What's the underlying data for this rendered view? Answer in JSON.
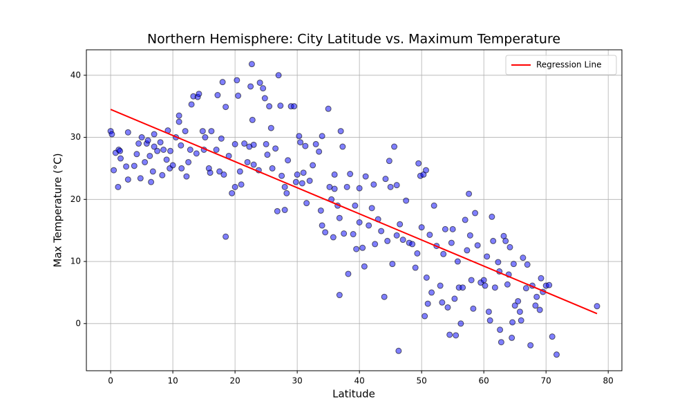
{
  "chart_data": {
    "type": "scatter",
    "title": "Northern Hemisphere: City Latitude vs. Maximum Temperature",
    "xlabel": "Latitude",
    "ylabel": "Max Temperature (°C)",
    "xlim": [
      -3.9,
      82.2
    ],
    "ylim": [
      -7.6,
      44.1
    ],
    "xticks": [
      0,
      10,
      20,
      30,
      40,
      50,
      60,
      70,
      80
    ],
    "yticks": [
      0,
      10,
      20,
      30,
      40
    ],
    "grid": true,
    "legend": "upper right",
    "color": "#0000ff",
    "edgecolor": "#000000",
    "x": [
      0,
      0.2,
      0.5,
      0.8,
      1.2,
      1.3,
      1.5,
      1.6,
      2.5,
      2.8,
      2.8,
      3.8,
      4.2,
      4.5,
      4.8,
      5,
      5.5,
      5.8,
      6,
      6.3,
      6.5,
      6.8,
      7,
      7,
      7.5,
      8,
      8.3,
      8.5,
      9,
      9.2,
      9.5,
      9.6,
      10,
      10.5,
      11,
      11,
      11.3,
      11.4,
      12,
      12.2,
      12.5,
      12.8,
      13,
      13.3,
      13.8,
      14,
      14.2,
      14.8,
      15,
      15.2,
      15.8,
      16,
      16.2,
      17,
      17.2,
      17.5,
      17.8,
      18,
      18.2,
      18.5,
      18.5,
      19,
      19.5,
      20,
      20,
      20.3,
      20.5,
      20.8,
      21,
      21.5,
      22,
      22.3,
      22.5,
      22.7,
      22.8,
      23,
      23,
      23.8,
      24,
      24.5,
      24.8,
      25,
      25.2,
      25.5,
      25.8,
      26,
      26.5,
      26.8,
      27,
      27.3,
      27.5,
      28,
      28,
      28.3,
      28.5,
      29,
      29.5,
      29.8,
      30,
      30.3,
      30.5,
      30.8,
      31,
      31.3,
      31.5,
      32,
      32.5,
      33,
      33.5,
      33.8,
      34,
      34,
      34.5,
      35,
      35.2,
      35.5,
      35.8,
      36,
      36,
      36.5,
      36.8,
      36.8,
      37,
      37.3,
      37.5,
      38,
      38.2,
      38.5,
      39,
      39.3,
      39.5,
      40,
      40,
      40.5,
      40.8,
      41,
      41.5,
      42,
      42.3,
      42.5,
      43,
      43.5,
      44,
      44.2,
      44.5,
      44.8,
      45,
      45.3,
      45.6,
      46,
      46,
      46.3,
      46.5,
      47,
      47.5,
      48,
      48.5,
      49,
      49.3,
      49.5,
      49.8,
      50,
      50.3,
      50.5,
      50.7,
      50.8,
      51,
      51.3,
      51.6,
      52,
      52.4,
      53,
      53.3,
      53.5,
      53.8,
      54.2,
      54.5,
      54.8,
      55,
      55.3,
      55.5,
      55.8,
      56,
      56.3,
      56.6,
      57,
      57.3,
      57.6,
      57.8,
      58,
      58.3,
      58.6,
      59,
      59.5,
      60,
      60.2,
      60.5,
      60.8,
      61,
      61.3,
      61.5,
      61.8,
      62.3,
      62.5,
      62.6,
      62.8,
      63.2,
      63.5,
      63.8,
      64,
      64.2,
      64.5,
      64.6,
      64.8,
      65,
      65.5,
      65.8,
      66,
      66.3,
      66.8,
      67,
      67.5,
      67.8,
      68.3,
      68.5,
      69,
      69.2,
      69.5,
      70,
      70.5,
      71,
      71.7,
      78.2
    ],
    "values": [
      31,
      30.5,
      24.7,
      27.5,
      22,
      28,
      27.8,
      26.6,
      25.3,
      30.8,
      23.2,
      25.4,
      27.3,
      29,
      23.4,
      30,
      26,
      29,
      29.5,
      27,
      22.8,
      24.5,
      30.5,
      28.5,
      27.8,
      29.2,
      23.9,
      28,
      26.4,
      31.1,
      25,
      27.8,
      25.5,
      30,
      33.5,
      32.5,
      28.7,
      25,
      31,
      23.7,
      26,
      28,
      35.3,
      36.6,
      27.4,
      36.5,
      37,
      31,
      28,
      30,
      25,
      24.3,
      31,
      28,
      36.8,
      24.5,
      29.8,
      38.9,
      24,
      34.9,
      14,
      27,
      21,
      28.9,
      22,
      39.2,
      36.7,
      24.5,
      22.4,
      29,
      26,
      28.5,
      38.2,
      41.8,
      32.8,
      28.8,
      25.6,
      24.7,
      38.8,
      37.9,
      36.3,
      28.9,
      27.2,
      35,
      31.5,
      25,
      28.2,
      18.1,
      40,
      35.1,
      23.8,
      18.3,
      22,
      21,
      26.3,
      35,
      35,
      22.8,
      24,
      30.2,
      29.2,
      22.6,
      24.3,
      28.6,
      19.4,
      23,
      25.5,
      28.9,
      27.7,
      18.2,
      15.8,
      30.2,
      14.7,
      34.6,
      22,
      20,
      13.9,
      21.7,
      24,
      19,
      4.6,
      17,
      31,
      28.5,
      14.5,
      22,
      8,
      24.1,
      14.4,
      19,
      12,
      21.8,
      16.3,
      12.2,
      9.2,
      23.7,
      15.8,
      18.6,
      22.4,
      12.8,
      16.8,
      14.9,
      4.3,
      23.3,
      13.3,
      26.2,
      22,
      9.6,
      28.5,
      22.3,
      14.2,
      -4.4,
      16,
      13.5,
      19.8,
      13,
      12.8,
      9,
      11.3,
      25.8,
      23.8,
      15.5,
      24,
      1.2,
      24.7,
      7.4,
      3.2,
      14.3,
      5,
      19,
      12.5,
      6.1,
      3.4,
      11.2,
      15.2,
      2.6,
      -1.8,
      13,
      15.2,
      4,
      -1.9,
      10,
      5.8,
      0,
      5.8,
      16.7,
      11.8,
      20.9,
      14.2,
      7,
      2.4,
      17.8,
      12.6,
      6.6,
      7,
      6.1,
      10.8,
      1.9,
      0.5,
      17.2,
      13.3,
      5.8,
      9.9,
      8.4,
      -1,
      -3,
      14.1,
      13.3,
      6.3,
      7.9,
      12.3,
      -2.3,
      0.2,
      9.6,
      2.9,
      3.6,
      1.9,
      0.5,
      10.6,
      5.7,
      9.5,
      -3.5,
      6.1,
      2.9,
      4.3,
      2.2,
      7.3,
      5.1,
      6.1,
      6.2,
      -2.1,
      -5,
      2.8
    ],
    "regression": {
      "name": "Regression Line",
      "color": "#ff0000",
      "x": [
        0,
        78.2
      ],
      "values": [
        34.5,
        1.6
      ]
    }
  }
}
